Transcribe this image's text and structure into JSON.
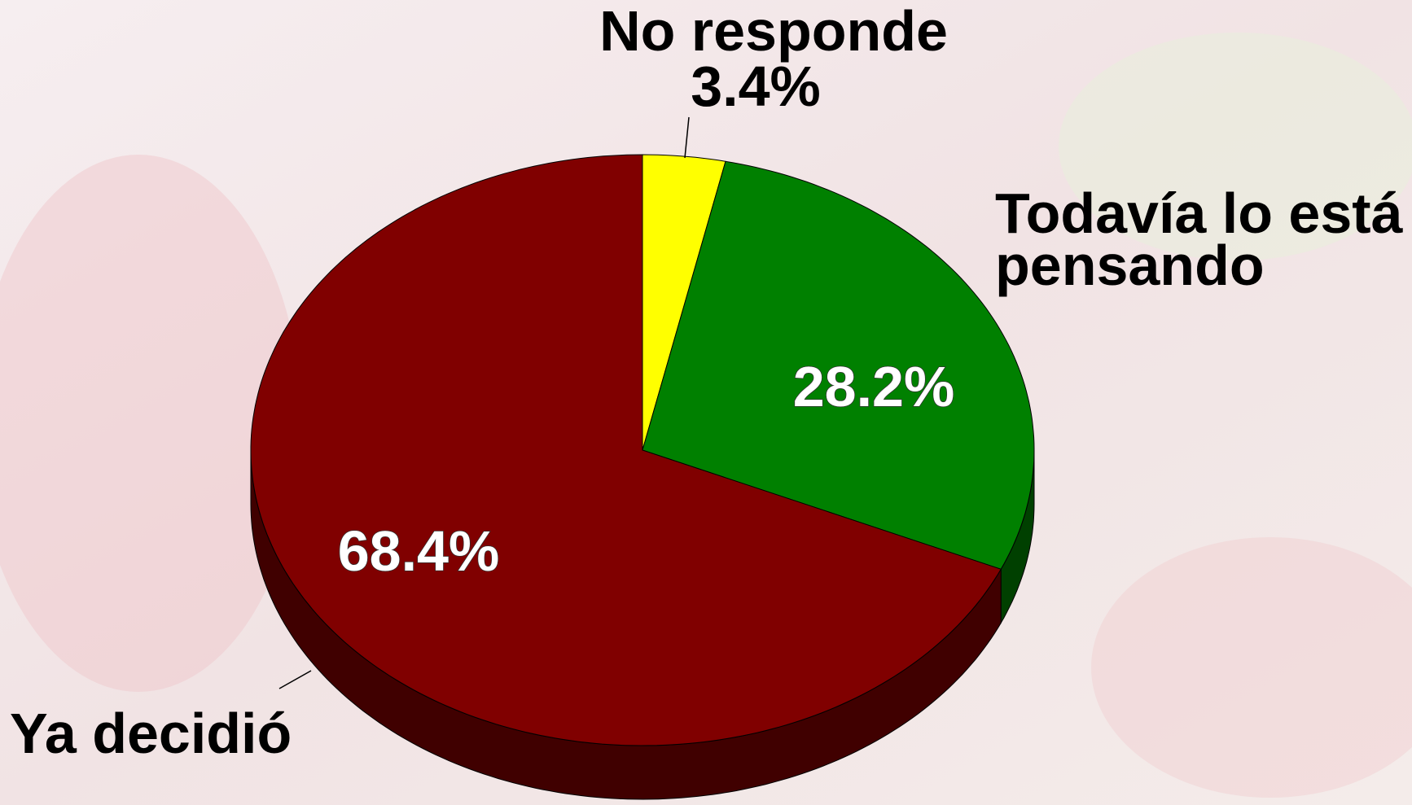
{
  "chart_data": {
    "type": "pie",
    "three_d": true,
    "categories": [
      "No responde",
      "Todavía lo está pensando",
      "Ya decidió"
    ],
    "values": [
      3.4,
      28.2,
      68.4
    ],
    "value_labels": [
      "3.4%",
      "28.2%",
      "68.4%"
    ],
    "colors": [
      "#ffff00",
      "#008000",
      "#800000"
    ],
    "side_colors": [
      "#808000",
      "#004000",
      "#400000"
    ],
    "start_angle": 0,
    "direction": "clockwise"
  }
}
